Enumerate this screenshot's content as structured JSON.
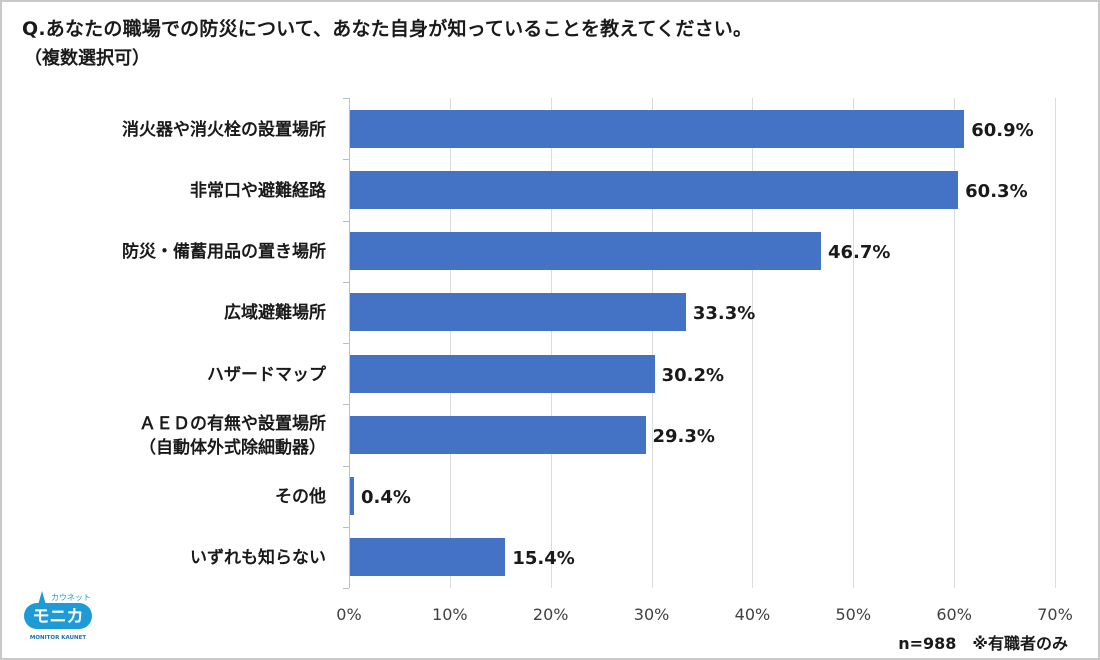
{
  "header": {
    "title": "Q.あなたの職場での防災について、あなた自身が知っていることを教えてください。",
    "subtitle": "（複数選択可）"
  },
  "footer": {
    "note": "n=988　※有職者のみ"
  },
  "logo": {
    "top_text": "カウネット",
    "main_text": "モニカ",
    "bottom_text": "MONITOR KAUNET",
    "color": "#1e9ad6"
  },
  "colors": {
    "bar": "#4472c4",
    "gridline": "#dcdcdc",
    "border": "#c9c9c9"
  },
  "chart_data": {
    "type": "bar",
    "orientation": "horizontal",
    "title": "Q.あなたの職場での防災について、あなた自身が知っていることを教えてください。（複数選択可）",
    "categories": [
      "消火器や消火栓の設置場所",
      "非常口や避難経路",
      "防災・備蓄用品の置き場所",
      "広域避難場所",
      "ハザードマップ",
      "ＡＥＤの有無や設置場所（自動体外式除細動器）",
      "その他",
      "いずれも知らない"
    ],
    "category_lines": [
      [
        "消火器や消火栓の設置場所"
      ],
      [
        "非常口や避難経路"
      ],
      [
        "防災・備蓄用品の置き場所"
      ],
      [
        "広域避難場所"
      ],
      [
        "ハザードマップ"
      ],
      [
        "ＡＥＤの有無や設置場所",
        "（自動体外式除細動器）"
      ],
      [
        "その他"
      ],
      [
        "いずれも知らない"
      ]
    ],
    "values": [
      60.9,
      60.3,
      46.7,
      33.3,
      30.2,
      29.3,
      0.4,
      15.4
    ],
    "value_labels": [
      "60.9%",
      "60.3%",
      "46.7%",
      "33.3%",
      "30.2%",
      "29.3%",
      "0.4%",
      "15.4%"
    ],
    "xlabel": "",
    "ylabel": "",
    "xlim": [
      0,
      70
    ],
    "x_ticks": [
      "0%",
      "10%",
      "20%",
      "30%",
      "40%",
      "50%",
      "60%",
      "70%"
    ],
    "grid": true,
    "legend": null,
    "annotation": "n=988　※有職者のみ"
  }
}
